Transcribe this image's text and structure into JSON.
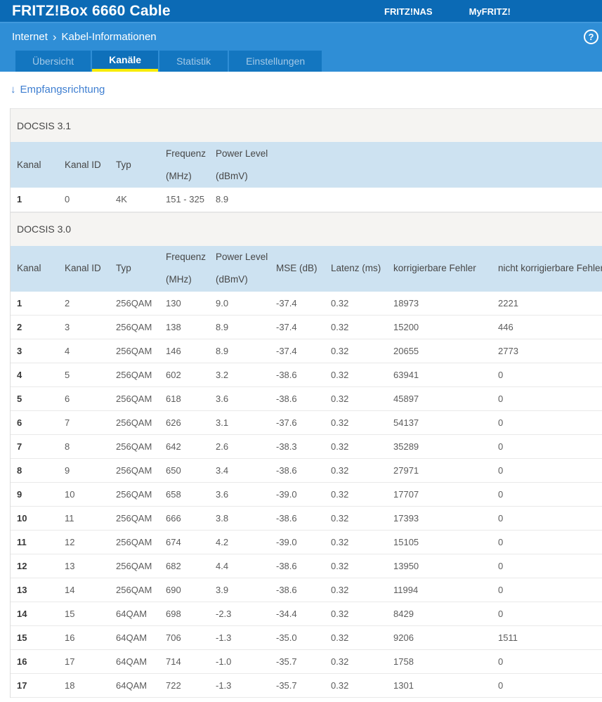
{
  "header": {
    "title": "FRITZ!Box 6660 Cable",
    "links": [
      {
        "name": "fritznas-link",
        "label": "FRITZ!NAS"
      },
      {
        "name": "myfritz-link",
        "label": "MyFRITZ!"
      }
    ]
  },
  "breadcrumb": {
    "section": "Internet",
    "separator": "›",
    "page": "Kabel-Informationen"
  },
  "help_icon_label": "?",
  "tabs": [
    {
      "name": "tab-uebersicht",
      "label": "Übersicht",
      "active": false
    },
    {
      "name": "tab-kanaele",
      "label": "Kanäle",
      "active": true
    },
    {
      "name": "tab-statistik",
      "label": "Statistik",
      "active": false
    },
    {
      "name": "tab-einstellungen",
      "label": "Einstellungen",
      "active": false
    }
  ],
  "direction_link": {
    "icon": "↓",
    "label": "Empfangsrichtung"
  },
  "colors": {
    "topbar_blue": "#0b6ab5",
    "subbar_blue": "#2f8ed6",
    "tab_blue": "#1376c0",
    "active_tab_underline": "#f8ec00",
    "link_blue": "#3f7fd1",
    "table_header_blue": "#cde2f1",
    "section_gray": "#f5f4f2"
  },
  "tables": [
    {
      "id": "docsis31",
      "section_title": "DOCSIS 3.1",
      "columns": [
        [
          "Kanal"
        ],
        [
          "Kanal ID"
        ],
        [
          "Typ"
        ],
        [
          "Frequenz",
          "(MHz)"
        ],
        [
          "Power Level",
          "(dBmV)"
        ]
      ],
      "rows": [
        [
          "1",
          "0",
          "4K",
          "151 - 325",
          "8.9"
        ]
      ]
    },
    {
      "id": "docsis30",
      "section_title": "DOCSIS 3.0",
      "columns": [
        [
          "Kanal"
        ],
        [
          "Kanal ID"
        ],
        [
          "Typ"
        ],
        [
          "Frequenz",
          "(MHz)"
        ],
        [
          "Power Level",
          "(dBmV)"
        ],
        [
          "MSE (dB)"
        ],
        [
          "Latenz (ms)"
        ],
        [
          "korrigierbare Fehler"
        ],
        [
          "nicht korrigierbare Fehler"
        ]
      ],
      "rows": [
        [
          "1",
          "2",
          "256QAM",
          "130",
          "9.0",
          "-37.4",
          "0.32",
          "18973",
          "2221"
        ],
        [
          "2",
          "3",
          "256QAM",
          "138",
          "8.9",
          "-37.4",
          "0.32",
          "15200",
          "446"
        ],
        [
          "3",
          "4",
          "256QAM",
          "146",
          "8.9",
          "-37.4",
          "0.32",
          "20655",
          "2773"
        ],
        [
          "4",
          "5",
          "256QAM",
          "602",
          "3.2",
          "-38.6",
          "0.32",
          "63941",
          "0"
        ],
        [
          "5",
          "6",
          "256QAM",
          "618",
          "3.6",
          "-38.6",
          "0.32",
          "45897",
          "0"
        ],
        [
          "6",
          "7",
          "256QAM",
          "626",
          "3.1",
          "-37.6",
          "0.32",
          "54137",
          "0"
        ],
        [
          "7",
          "8",
          "256QAM",
          "642",
          "2.6",
          "-38.3",
          "0.32",
          "35289",
          "0"
        ],
        [
          "8",
          "9",
          "256QAM",
          "650",
          "3.4",
          "-38.6",
          "0.32",
          "27971",
          "0"
        ],
        [
          "9",
          "10",
          "256QAM",
          "658",
          "3.6",
          "-39.0",
          "0.32",
          "17707",
          "0"
        ],
        [
          "10",
          "11",
          "256QAM",
          "666",
          "3.8",
          "-38.6",
          "0.32",
          "17393",
          "0"
        ],
        [
          "11",
          "12",
          "256QAM",
          "674",
          "4.2",
          "-39.0",
          "0.32",
          "15105",
          "0"
        ],
        [
          "12",
          "13",
          "256QAM",
          "682",
          "4.4",
          "-38.6",
          "0.32",
          "13950",
          "0"
        ],
        [
          "13",
          "14",
          "256QAM",
          "690",
          "3.9",
          "-38.6",
          "0.32",
          "11994",
          "0"
        ],
        [
          "14",
          "15",
          "64QAM",
          "698",
          "-2.3",
          "-34.4",
          "0.32",
          "8429",
          "0"
        ],
        [
          "15",
          "16",
          "64QAM",
          "706",
          "-1.3",
          "-35.0",
          "0.32",
          "9206",
          "1511"
        ],
        [
          "16",
          "17",
          "64QAM",
          "714",
          "-1.0",
          "-35.7",
          "0.32",
          "1758",
          "0"
        ],
        [
          "17",
          "18",
          "64QAM",
          "722",
          "-1.3",
          "-35.7",
          "0.32",
          "1301",
          "0"
        ]
      ]
    }
  ]
}
